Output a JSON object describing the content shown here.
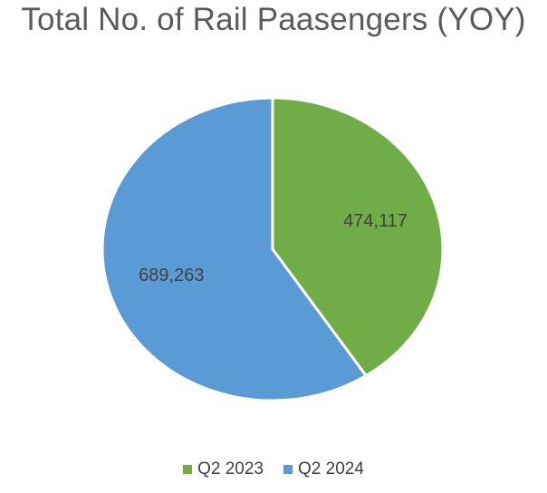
{
  "chart_data": {
    "type": "pie",
    "title": "Total No. of Rail Paasengers (YOY)",
    "categories": [
      "Q2 2023",
      "Q2 2024"
    ],
    "values": [
      474117,
      689263
    ],
    "value_labels": [
      "474,117",
      "689,263"
    ],
    "colors": [
      "#70AD47",
      "#5B9BD5"
    ],
    "legend_position": "bottom"
  }
}
